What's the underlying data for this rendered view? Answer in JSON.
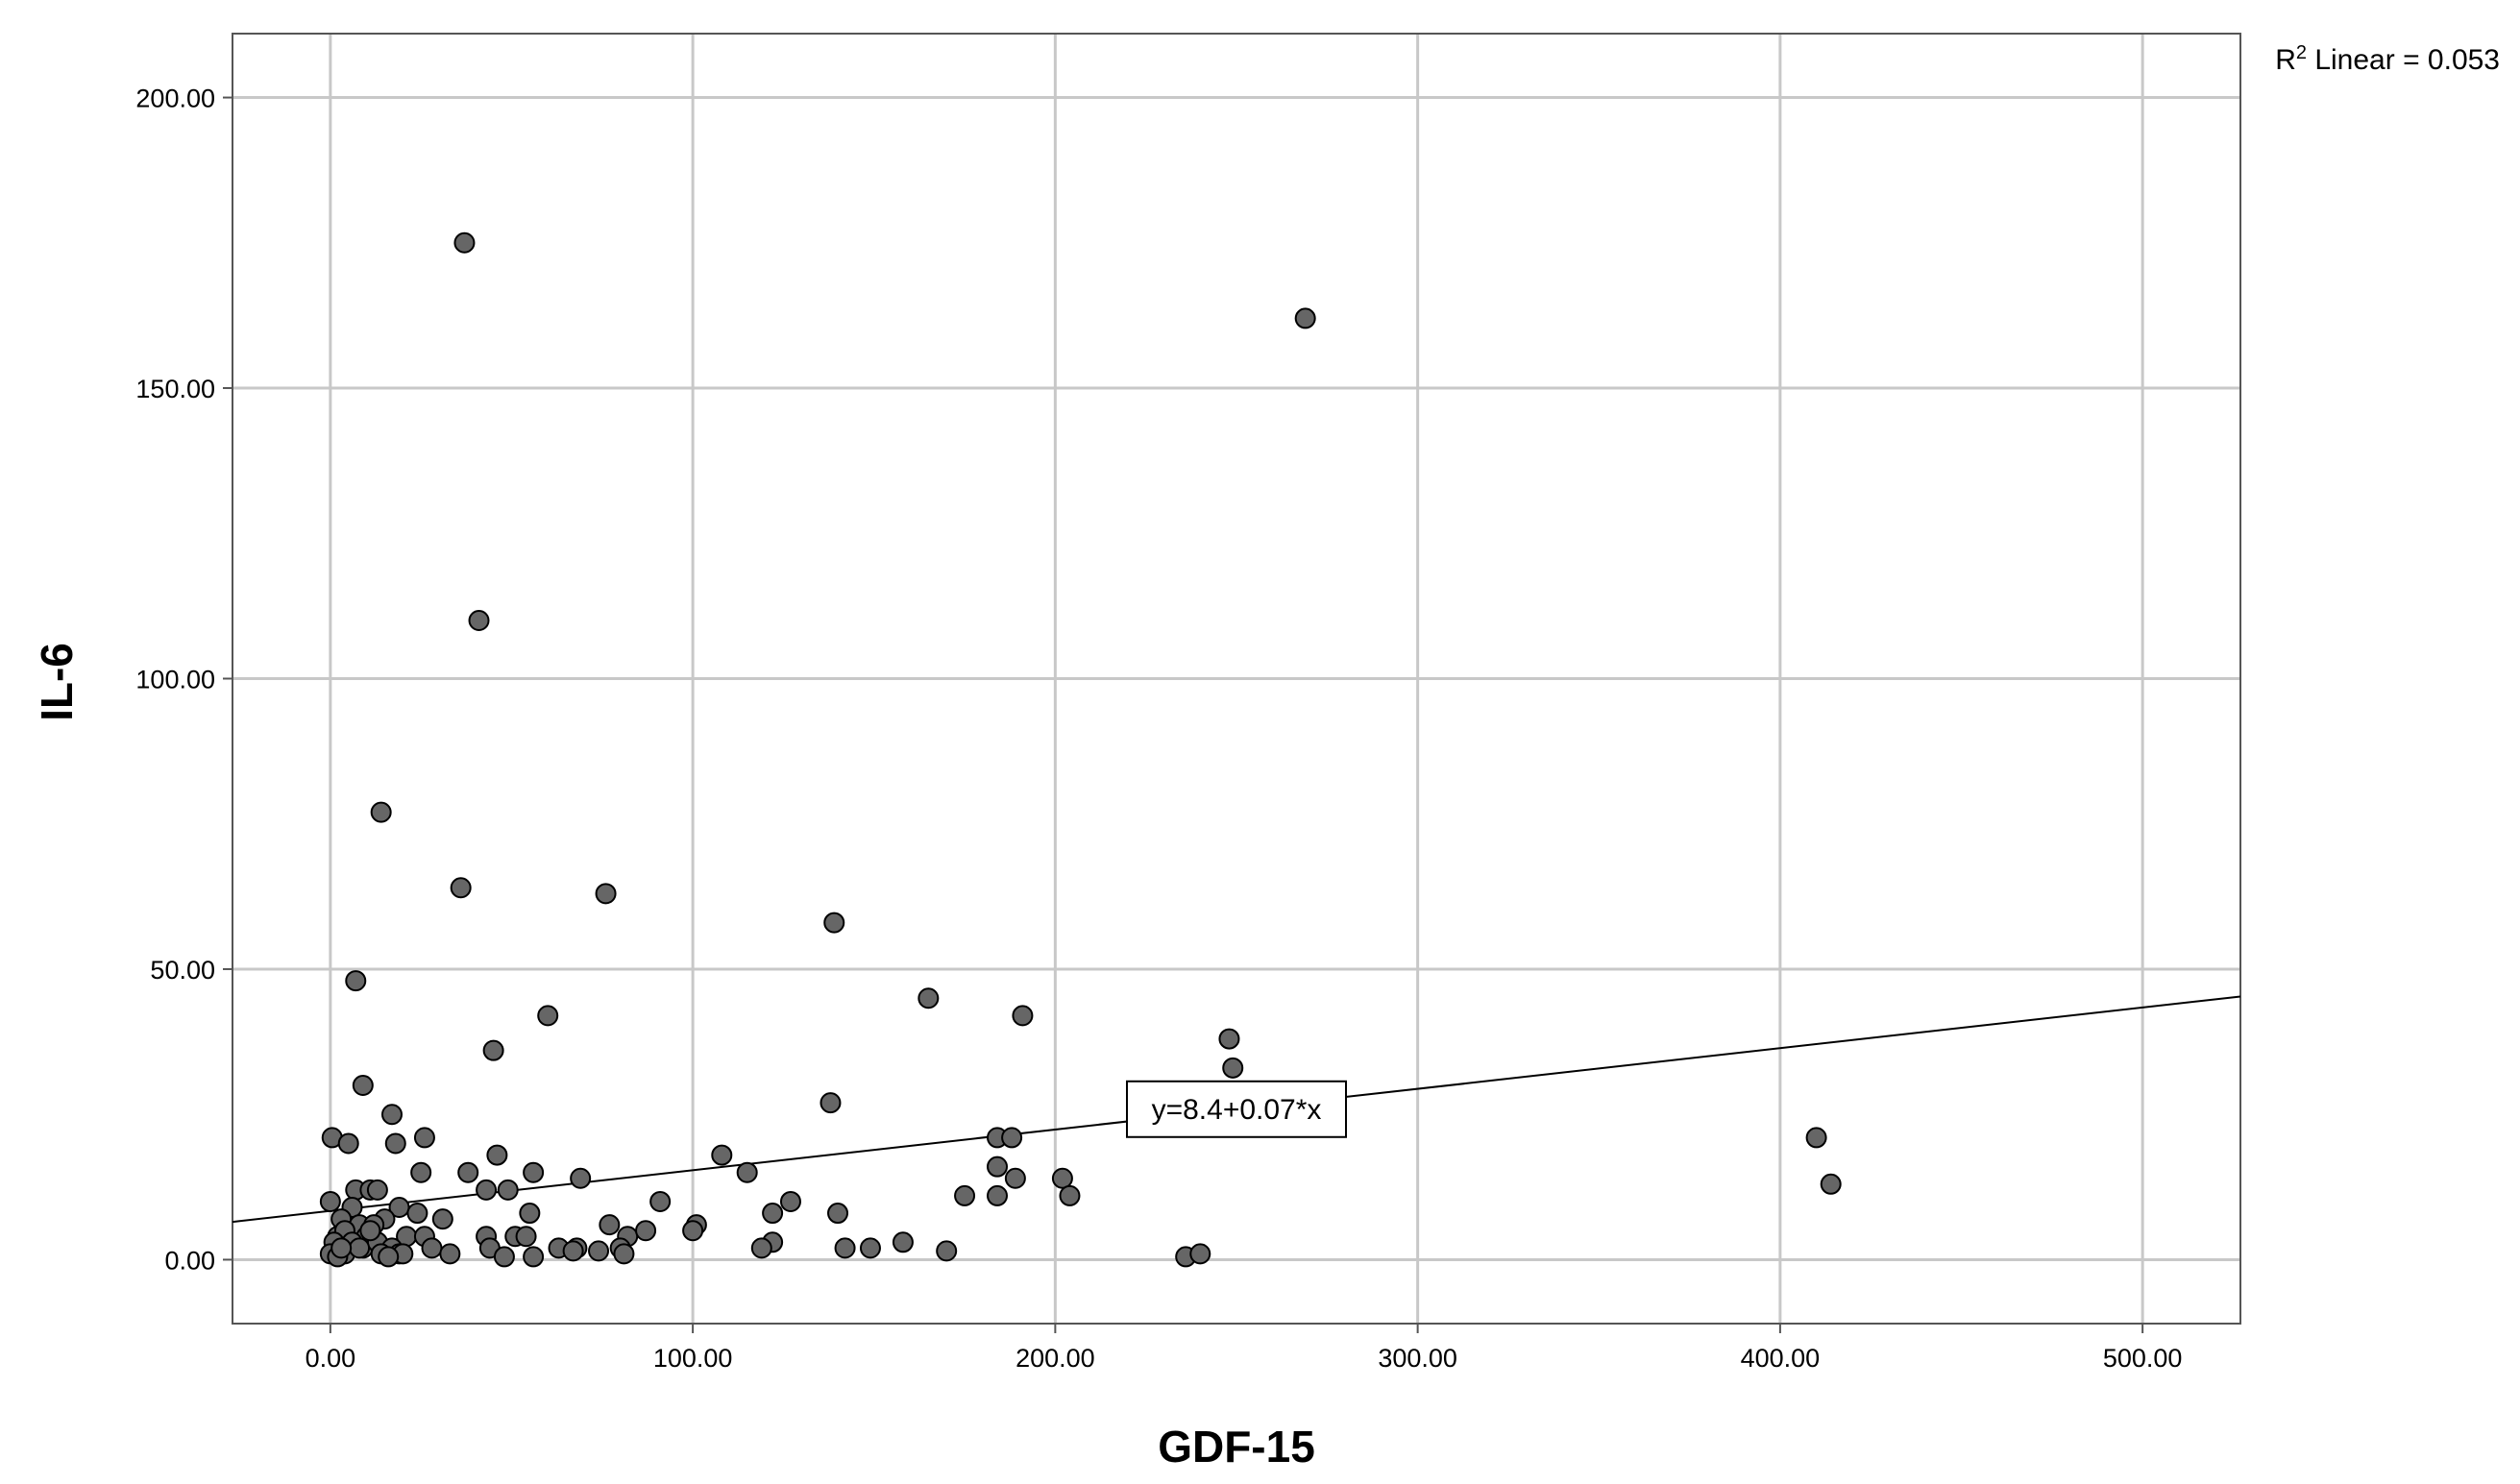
{
  "chart_data": {
    "type": "scatter",
    "title": "",
    "xlabel": "GDF-15",
    "ylabel": "IL-6",
    "xlim": [
      -27,
      527
    ],
    "ylim": [
      -11,
      211
    ],
    "x_ticks": [
      0,
      100,
      200,
      300,
      400,
      500
    ],
    "y_ticks": [
      0,
      50,
      100,
      150,
      200
    ],
    "x_tick_labels": [
      "0.00",
      "100.00",
      "200.00",
      "300.00",
      "400.00",
      "500.00"
    ],
    "y_tick_labels": [
      "0.00",
      "50.00",
      "100.00",
      "150.00",
      "200.00"
    ],
    "grid": true,
    "r2_label": {
      "prefix": "R",
      "superscript": "2",
      "text": " Linear = 0.053"
    },
    "fit_line": {
      "intercept": 8.4,
      "slope": 0.07,
      "label": "y=8.4+0.07*x",
      "label_at_x": 250
    },
    "marker_color": "#666666",
    "points": [
      [
        37,
        175
      ],
      [
        269,
        162
      ],
      [
        41,
        110
      ],
      [
        14,
        77
      ],
      [
        36,
        64
      ],
      [
        76,
        63
      ],
      [
        139,
        58
      ],
      [
        7,
        48
      ],
      [
        165,
        45
      ],
      [
        191,
        42
      ],
      [
        60,
        42
      ],
      [
        248,
        38
      ],
      [
        45,
        36
      ],
      [
        249,
        33
      ],
      [
        9,
        30
      ],
      [
        138,
        27
      ],
      [
        17,
        25
      ],
      [
        26,
        21
      ],
      [
        0.5,
        21
      ],
      [
        5,
        20
      ],
      [
        18,
        20
      ],
      [
        184,
        21
      ],
      [
        188,
        21
      ],
      [
        410,
        21
      ],
      [
        46,
        18
      ],
      [
        108,
        18
      ],
      [
        184,
        16
      ],
      [
        38,
        15
      ],
      [
        25,
        15
      ],
      [
        56,
        15
      ],
      [
        115,
        15
      ],
      [
        189,
        14
      ],
      [
        202,
        14
      ],
      [
        69,
        14
      ],
      [
        414,
        13
      ],
      [
        7,
        12
      ],
      [
        11,
        12
      ],
      [
        13,
        12
      ],
      [
        43,
        12
      ],
      [
        49,
        12
      ],
      [
        175,
        11
      ],
      [
        184,
        11
      ],
      [
        204,
        11
      ],
      [
        0,
        10
      ],
      [
        91,
        10
      ],
      [
        127,
        10
      ],
      [
        6,
        9
      ],
      [
        19,
        9
      ],
      [
        24,
        8
      ],
      [
        140,
        8
      ],
      [
        122,
        8
      ],
      [
        55,
        8
      ],
      [
        31,
        7
      ],
      [
        3,
        7
      ],
      [
        15,
        7
      ],
      [
        8,
        6
      ],
      [
        12,
        6
      ],
      [
        101,
        6
      ],
      [
        77,
        6
      ],
      [
        100,
        5
      ],
      [
        2,
        4
      ],
      [
        4,
        5
      ],
      [
        10,
        4
      ],
      [
        21,
        4
      ],
      [
        26,
        4
      ],
      [
        43,
        4
      ],
      [
        51,
        4
      ],
      [
        54,
        4
      ],
      [
        82,
        4
      ],
      [
        87,
        5
      ],
      [
        1,
        3
      ],
      [
        6,
        3
      ],
      [
        9,
        2
      ],
      [
        13,
        3
      ],
      [
        17,
        2
      ],
      [
        28,
        2
      ],
      [
        44,
        2
      ],
      [
        63,
        2
      ],
      [
        68,
        2
      ],
      [
        80,
        2
      ],
      [
        122,
        3
      ],
      [
        149,
        2
      ],
      [
        158,
        3
      ],
      [
        142,
        2
      ],
      [
        119,
        2
      ],
      [
        0,
        1
      ],
      [
        4,
        1
      ],
      [
        14,
        1
      ],
      [
        19,
        1
      ],
      [
        33,
        1
      ],
      [
        48,
        0.5
      ],
      [
        56,
        0.5
      ],
      [
        67,
        1.5
      ],
      [
        74,
        1.5
      ],
      [
        81,
        1
      ],
      [
        170,
        1.5
      ],
      [
        236,
        0.5
      ],
      [
        240,
        1
      ],
      [
        2,
        0.5
      ],
      [
        8,
        2
      ],
      [
        20,
        1
      ],
      [
        3,
        2
      ],
      [
        11,
        5
      ],
      [
        16,
        0.5
      ]
    ]
  }
}
